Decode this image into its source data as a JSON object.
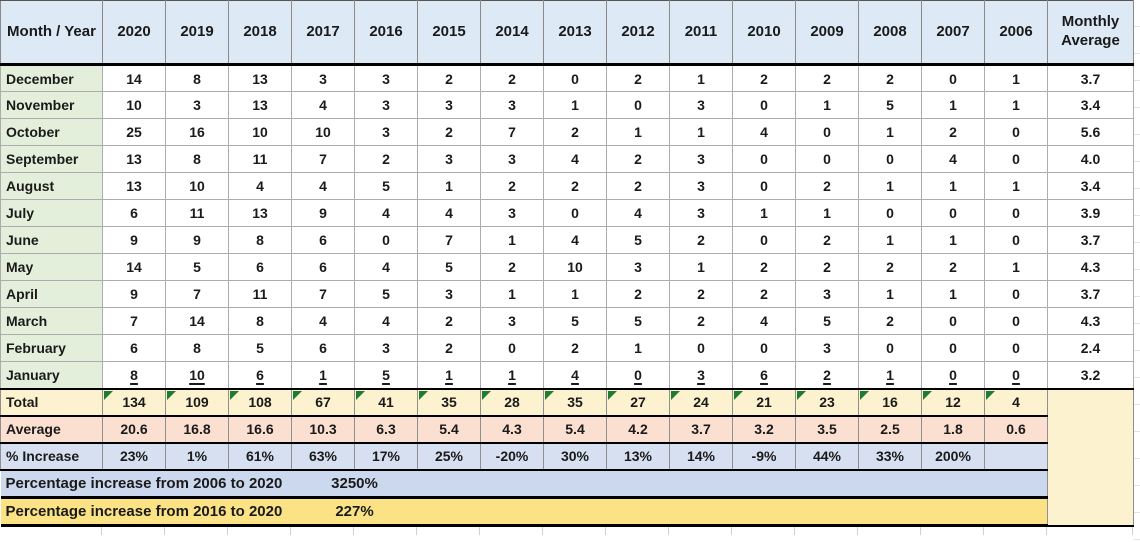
{
  "table": {
    "corner_label": "Month / Year",
    "years": [
      "2020",
      "2019",
      "2018",
      "2017",
      "2016",
      "2015",
      "2014",
      "2013",
      "2012",
      "2011",
      "2010",
      "2009",
      "2008",
      "2007",
      "2006"
    ],
    "monthly_average_label": "Monthly Average",
    "months": [
      {
        "name": "December",
        "values": [
          14,
          8,
          13,
          3,
          3,
          2,
          2,
          0,
          2,
          1,
          2,
          2,
          2,
          0,
          1
        ],
        "avg": "3.7"
      },
      {
        "name": "November",
        "values": [
          10,
          3,
          13,
          4,
          3,
          3,
          3,
          1,
          0,
          3,
          0,
          1,
          5,
          1,
          1
        ],
        "avg": "3.4"
      },
      {
        "name": "October",
        "values": [
          25,
          16,
          10,
          10,
          3,
          2,
          7,
          2,
          1,
          1,
          4,
          0,
          1,
          2,
          0
        ],
        "avg": "5.6"
      },
      {
        "name": "September",
        "values": [
          13,
          8,
          11,
          7,
          2,
          3,
          3,
          4,
          2,
          3,
          0,
          0,
          0,
          4,
          0
        ],
        "avg": "4.0"
      },
      {
        "name": "August",
        "values": [
          13,
          10,
          4,
          4,
          5,
          1,
          2,
          2,
          2,
          3,
          0,
          2,
          1,
          1,
          1
        ],
        "avg": "3.4"
      },
      {
        "name": "July",
        "values": [
          6,
          11,
          13,
          9,
          4,
          4,
          3,
          0,
          4,
          3,
          1,
          1,
          0,
          0,
          0
        ],
        "avg": "3.9"
      },
      {
        "name": "June",
        "values": [
          9,
          9,
          8,
          6,
          0,
          7,
          1,
          4,
          5,
          2,
          0,
          2,
          1,
          1,
          0
        ],
        "avg": "3.7"
      },
      {
        "name": "May",
        "values": [
          14,
          5,
          6,
          6,
          4,
          5,
          2,
          10,
          3,
          1,
          2,
          2,
          2,
          2,
          1
        ],
        "avg": "4.3"
      },
      {
        "name": "April",
        "values": [
          9,
          7,
          11,
          7,
          5,
          3,
          1,
          1,
          2,
          2,
          2,
          3,
          1,
          1,
          0
        ],
        "avg": "3.7"
      },
      {
        "name": "March",
        "values": [
          7,
          14,
          8,
          4,
          4,
          2,
          3,
          5,
          5,
          2,
          4,
          5,
          2,
          0,
          0
        ],
        "avg": "4.3"
      },
      {
        "name": "February",
        "values": [
          6,
          8,
          5,
          6,
          3,
          2,
          0,
          2,
          1,
          0,
          0,
          3,
          0,
          0,
          0
        ],
        "avg": "2.4"
      },
      {
        "name": "January",
        "values": [
          8,
          10,
          6,
          1,
          5,
          1,
          1,
          4,
          0,
          3,
          6,
          2,
          1,
          0,
          0
        ],
        "avg": "3.2",
        "underline": true
      }
    ],
    "total_row": {
      "label": "Total",
      "values": [
        134,
        109,
        108,
        67,
        41,
        35,
        28,
        35,
        27,
        24,
        21,
        23,
        16,
        12,
        4
      ]
    },
    "average_row": {
      "label": "Average",
      "values": [
        "20.6",
        "16.8",
        "16.6",
        "10.3",
        "6.3",
        "5.4",
        "4.3",
        "5.4",
        "4.2",
        "3.7",
        "3.2",
        "3.5",
        "2.5",
        "1.8",
        "0.6"
      ]
    },
    "pct_increase_row": {
      "label": "% Increase",
      "values": [
        "23%",
        "1%",
        "61%",
        "63%",
        "17%",
        "25%",
        "-20%",
        "30%",
        "13%",
        "14%",
        "-9%",
        "44%",
        "33%",
        "200%",
        ""
      ]
    },
    "summary_rows": [
      {
        "label": "Percentage increase from 2006 to 2020",
        "value": "3250%",
        "band": "blue"
      },
      {
        "label": "Percentage increase from 2016 to 2020",
        "value": "227%",
        "band": "yellow"
      }
    ]
  },
  "colors": {
    "header_bg": "#DDEAF6",
    "month_bg": "#E3EFDB",
    "total_bg": "#FCF2CF",
    "average_bg": "#FBDFD0",
    "pct_bg": "#D7E0F1",
    "summary_blue": "#CCD8EE",
    "summary_yellow": "#FBE385",
    "gray_block": "#ABABAB",
    "triangle": "#1E7B32"
  }
}
